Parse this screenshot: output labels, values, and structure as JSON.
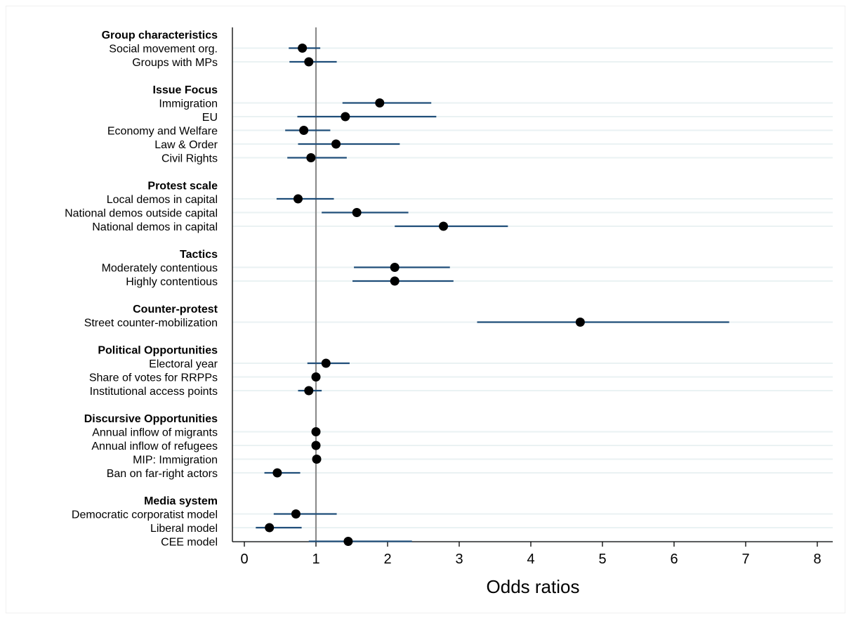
{
  "chart_data": {
    "type": "scatter",
    "subtype": "coefficient plot (odds ratios with confidence intervals)",
    "xlabel": "Odds ratios",
    "xlim": [
      0,
      8
    ],
    "x_ticks": [
      0,
      1,
      2,
      3,
      4,
      5,
      6,
      7,
      8
    ],
    "reference_line": 1,
    "grid": "horizontal",
    "colors": {
      "marker": "#000000",
      "ci": "#1f4e79",
      "grid": "#eaf2f3",
      "reference": "#8c8c8c"
    },
    "groups": [
      {
        "label": "Group characteristics",
        "items": [
          {
            "label": "Social movement org.",
            "estimate": 0.81,
            "ci": [
              0.62,
              1.06
            ]
          },
          {
            "label": "Groups with MPs",
            "estimate": 0.9,
            "ci": [
              0.63,
              1.29
            ]
          }
        ]
      },
      {
        "label": "Issue Focus",
        "items": [
          {
            "label": "Immigration",
            "estimate": 1.89,
            "ci": [
              1.37,
              2.61
            ]
          },
          {
            "label": "EU",
            "estimate": 1.41,
            "ci": [
              0.74,
              2.68
            ]
          },
          {
            "label": "Economy and Welfare",
            "estimate": 0.83,
            "ci": [
              0.57,
              1.2
            ]
          },
          {
            "label": "Law & Order",
            "estimate": 1.28,
            "ci": [
              0.75,
              2.17
            ]
          },
          {
            "label": "Civil Rights",
            "estimate": 0.93,
            "ci": [
              0.6,
              1.43
            ]
          }
        ]
      },
      {
        "label": "Protest scale",
        "items": [
          {
            "label": "Local demos in capital",
            "estimate": 0.75,
            "ci": [
              0.45,
              1.25
            ]
          },
          {
            "label": "National demos outside capital",
            "estimate": 1.57,
            "ci": [
              1.08,
              2.29
            ]
          },
          {
            "label": "National demos in capital",
            "estimate": 2.78,
            "ci": [
              2.1,
              3.68
            ]
          }
        ]
      },
      {
        "label": "Tactics",
        "items": [
          {
            "label": "Moderately contentious",
            "estimate": 2.1,
            "ci": [
              1.53,
              2.87
            ]
          },
          {
            "label": "Highly contentious",
            "estimate": 2.1,
            "ci": [
              1.51,
              2.92
            ]
          }
        ]
      },
      {
        "label": "Counter-protest",
        "items": [
          {
            "label": "Street counter-mobilization",
            "estimate": 4.69,
            "ci": [
              3.25,
              6.77
            ]
          }
        ]
      },
      {
        "label": "Political Opportunities",
        "items": [
          {
            "label": "Electoral year",
            "estimate": 1.14,
            "ci": [
              0.88,
              1.47
            ]
          },
          {
            "label": "Share of votes for RRPPs",
            "estimate": 1.0,
            "ci": [
              0.99,
              1.02
            ]
          },
          {
            "label": "Institutional access points",
            "estimate": 0.9,
            "ci": [
              0.75,
              1.08
            ]
          }
        ]
      },
      {
        "label": "Discursive Opportunities",
        "items": [
          {
            "label": "Annual inflow of migrants",
            "estimate": 1.0,
            "ci": [
              1.0,
              1.0
            ]
          },
          {
            "label": "Annual inflow of refugees",
            "estimate": 1.0,
            "ci": [
              1.0,
              1.0
            ]
          },
          {
            "label": "MIP: Immigration",
            "estimate": 1.01,
            "ci": [
              1.0,
              1.03
            ]
          },
          {
            "label": "Ban on far-right actors",
            "estimate": 0.46,
            "ci": [
              0.28,
              0.78
            ]
          }
        ]
      },
      {
        "label": "Media system",
        "items": [
          {
            "label": "Democratic corporatist model",
            "estimate": 0.72,
            "ci": [
              0.41,
              1.29
            ]
          },
          {
            "label": "Liberal model",
            "estimate": 0.35,
            "ci": [
              0.16,
              0.8
            ]
          },
          {
            "label": "CEE model",
            "estimate": 1.45,
            "ci": [
              0.9,
              2.34
            ]
          }
        ]
      }
    ]
  }
}
